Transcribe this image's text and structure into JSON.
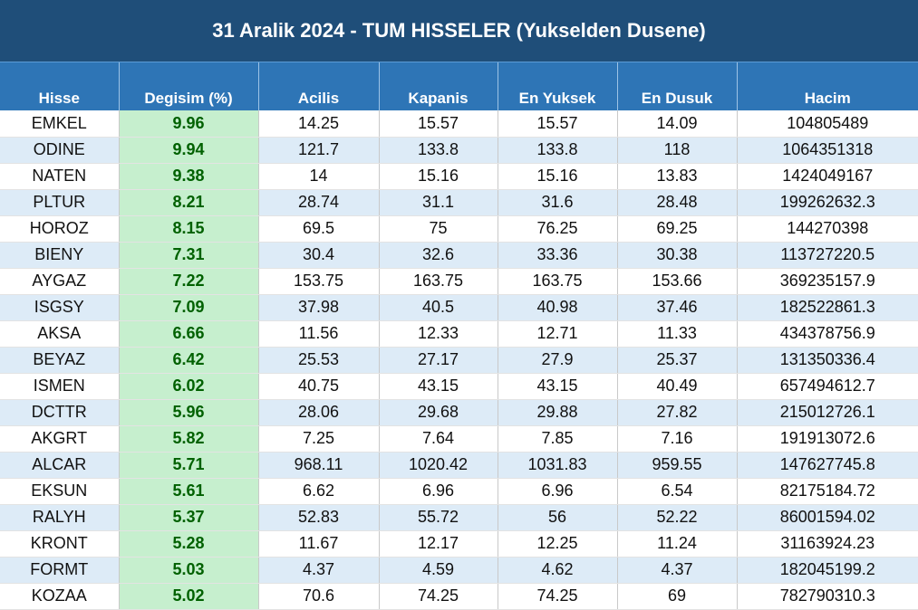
{
  "title": "31 Aralik 2024 - TUM HISSELER (Yukselden Dusene)",
  "table": {
    "header": [
      "Hisse",
      "Degisim (%)",
      "Acilis",
      "Kapanis",
      "En Yuksek",
      "En Dusuk",
      "Hacim"
    ],
    "rows": [
      [
        "EMKEL",
        "9.96",
        "14.25",
        "15.57",
        "15.57",
        "14.09",
        "104805489"
      ],
      [
        "ODINE",
        "9.94",
        "121.7",
        "133.8",
        "133.8",
        "118",
        "1064351318"
      ],
      [
        "NATEN",
        "9.38",
        "14",
        "15.16",
        "15.16",
        "13.83",
        "1424049167"
      ],
      [
        "PLTUR",
        "8.21",
        "28.74",
        "31.1",
        "31.6",
        "28.48",
        "199262632.3"
      ],
      [
        "HOROZ",
        "8.15",
        "69.5",
        "75",
        "76.25",
        "69.25",
        "144270398"
      ],
      [
        "BIENY",
        "7.31",
        "30.4",
        "32.6",
        "33.36",
        "30.38",
        "113727220.5"
      ],
      [
        "AYGAZ",
        "7.22",
        "153.75",
        "163.75",
        "163.75",
        "153.66",
        "369235157.9"
      ],
      [
        "ISGSY",
        "7.09",
        "37.98",
        "40.5",
        "40.98",
        "37.46",
        "182522861.3"
      ],
      [
        "AKSA",
        "6.66",
        "11.56",
        "12.33",
        "12.71",
        "11.33",
        "434378756.9"
      ],
      [
        "BEYAZ",
        "6.42",
        "25.53",
        "27.17",
        "27.9",
        "25.37",
        "131350336.4"
      ],
      [
        "ISMEN",
        "6.02",
        "40.75",
        "43.15",
        "43.15",
        "40.49",
        "657494612.7"
      ],
      [
        "DCTTR",
        "5.96",
        "28.06",
        "29.68",
        "29.88",
        "27.82",
        "215012726.1"
      ],
      [
        "AKGRT",
        "5.82",
        "7.25",
        "7.64",
        "7.85",
        "7.16",
        "191913072.6"
      ],
      [
        "ALCAR",
        "5.71",
        "968.11",
        "1020.42",
        "1031.83",
        "959.55",
        "147627745.8"
      ],
      [
        "EKSUN",
        "5.61",
        "6.62",
        "6.96",
        "6.96",
        "6.54",
        "82175184.72"
      ],
      [
        "RALYH",
        "5.37",
        "52.83",
        "55.72",
        "56",
        "52.22",
        "86001594.02"
      ],
      [
        "KRONT",
        "5.28",
        "11.67",
        "12.17",
        "12.25",
        "11.24",
        "31163924.23"
      ],
      [
        "FORMT",
        "5.03",
        "4.37",
        "4.59",
        "4.62",
        "4.37",
        "182045199.2"
      ],
      [
        "KOZAA",
        "5.02",
        "70.6",
        "74.25",
        "74.25",
        "69",
        "782790310.3"
      ]
    ]
  }
}
